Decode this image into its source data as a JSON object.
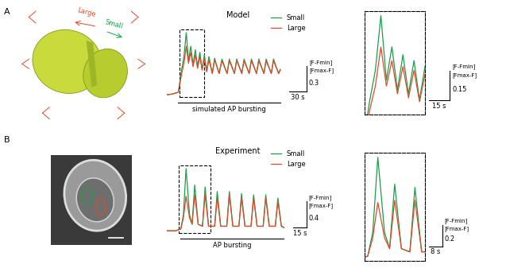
{
  "panel_labels": [
    "A",
    "B"
  ],
  "cell_model_labels": [
    {
      "text": "Large",
      "color": "#e04a2a"
    },
    {
      "text": "Small",
      "color": "#1a9e4a"
    }
  ],
  "chart_data": [
    {
      "type": "line",
      "title": "Model",
      "legend": "upper right",
      "tick_labels": false,
      "x": [
        0,
        10,
        20,
        26,
        30,
        34,
        38,
        42,
        46,
        50,
        54,
        58,
        62,
        66,
        70,
        74,
        80,
        84,
        92,
        97,
        106,
        110,
        119,
        123,
        132,
        136,
        145,
        149,
        158,
        162,
        171,
        175,
        184,
        188,
        197,
        200
      ],
      "series": [
        {
          "name": "Small",
          "color": "#1a9e4a",
          "values": [
            0.05,
            0.06,
            0.08,
            0.35,
            0.5,
            0.78,
            0.45,
            0.62,
            0.4,
            0.58,
            0.38,
            0.55,
            0.35,
            0.52,
            0.33,
            0.5,
            0.3,
            0.48,
            0.3,
            0.47,
            0.3,
            0.47,
            0.3,
            0.47,
            0.3,
            0.47,
            0.3,
            0.47,
            0.3,
            0.47,
            0.3,
            0.47,
            0.3,
            0.47,
            0.3,
            0.35
          ]
        },
        {
          "name": "Large",
          "color": "#e04a2a",
          "values": [
            0.05,
            0.06,
            0.08,
            0.3,
            0.42,
            0.62,
            0.42,
            0.55,
            0.38,
            0.52,
            0.36,
            0.5,
            0.34,
            0.48,
            0.32,
            0.46,
            0.3,
            0.46,
            0.3,
            0.45,
            0.3,
            0.45,
            0.3,
            0.45,
            0.3,
            0.45,
            0.3,
            0.45,
            0.3,
            0.45,
            0.3,
            0.45,
            0.3,
            0.45,
            0.3,
            0.34
          ]
        }
      ],
      "stimulus": {
        "label": "simulated AP bursting",
        "start": 20,
        "end": 200
      },
      "scale_bar": {
        "x": 30,
        "x_label": "30 s",
        "y": 0.3,
        "y_label": [
          "[F-Fmin]",
          "[Fmax-F]"
        ]
      },
      "zoom": {
        "start": 22,
        "end": 66,
        "scale_bar": {
          "x": 15,
          "x_label": "15 s",
          "y": 0.15,
          "y_label": [
            "[F-Fmin]",
            "[Fmax-F]"
          ]
        }
      }
    },
    {
      "type": "line",
      "title": "Experiment",
      "legend": "upper right",
      "tick_labels": false,
      "x": [
        0,
        10,
        16,
        19,
        22,
        26,
        29,
        32,
        36,
        41,
        44,
        48,
        55,
        58,
        62,
        69,
        72,
        76,
        83,
        86,
        90,
        97,
        100,
        104,
        111,
        114,
        118,
        125,
        128,
        132,
        135
      ],
      "series": [
        {
          "name": "Small",
          "color": "#1a9e4a",
          "values": [
            0.05,
            0.05,
            0.08,
            0.3,
            1.0,
            0.3,
            0.15,
            0.75,
            0.15,
            0.12,
            0.72,
            0.12,
            0.12,
            0.65,
            0.12,
            0.12,
            0.65,
            0.12,
            0.12,
            0.62,
            0.12,
            0.12,
            0.6,
            0.12,
            0.12,
            0.6,
            0.12,
            0.12,
            0.55,
            0.12,
            0.1
          ]
        },
        {
          "name": "Large",
          "color": "#e04a2a",
          "values": [
            0.05,
            0.05,
            0.08,
            0.25,
            0.58,
            0.25,
            0.15,
            0.6,
            0.15,
            0.12,
            0.6,
            0.12,
            0.12,
            0.55,
            0.12,
            0.12,
            0.6,
            0.12,
            0.12,
            0.55,
            0.12,
            0.12,
            0.55,
            0.12,
            0.12,
            0.55,
            0.12,
            0.12,
            0.5,
            0.12,
            0.1
          ]
        }
      ],
      "stimulus": {
        "label": "AP bursting",
        "start": 15,
        "end": 135
      },
      "scale_bar": {
        "x": 15,
        "x_label": "15 s",
        "y": 0.4,
        "y_label": [
          "[F-Fmin]",
          "[Fmax-F]"
        ]
      },
      "zoom": {
        "start": 14,
        "end": 50,
        "scale_bar": {
          "x": 8,
          "x_label": "8 s",
          "y": 0.2,
          "y_label": [
            "[F-Fmin]",
            "[Fmax-F]"
          ]
        }
      }
    }
  ]
}
